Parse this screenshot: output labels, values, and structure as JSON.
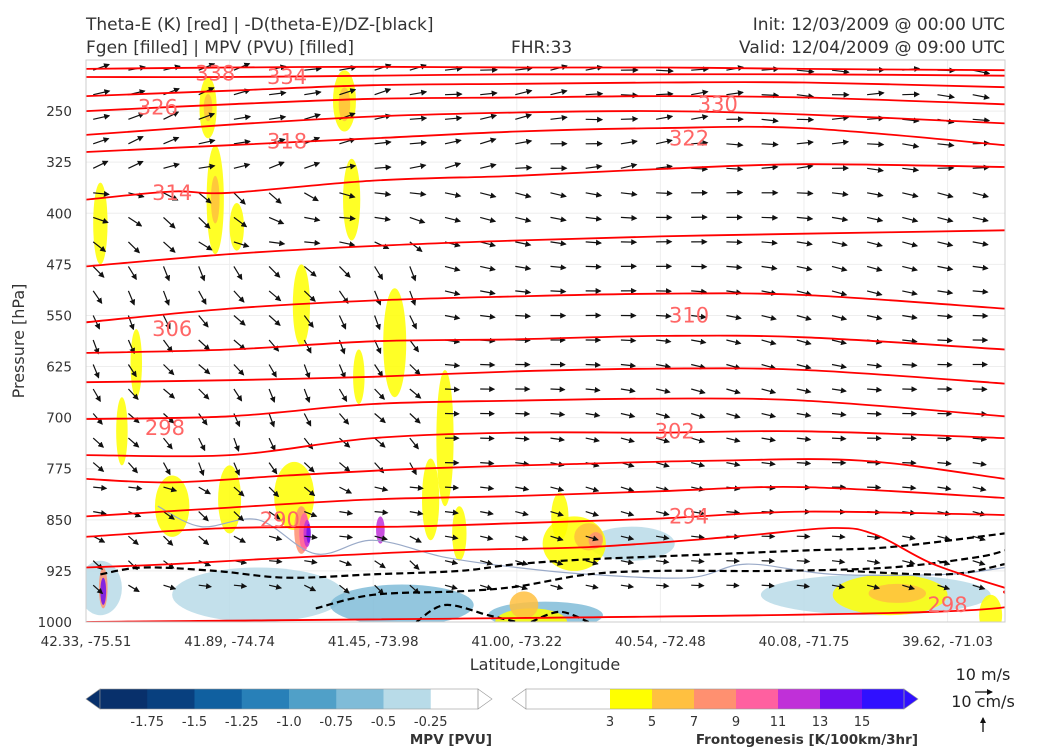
{
  "header": {
    "line1_left": "Theta-E (K) [red] | -D(theta-E)/DZ-[black]",
    "line2_left": "Fgen [filled] | MPV (PVU) [filled]",
    "line2_center": "FHR:33",
    "line1_right": "Init: 12/03/2009 @ 00:00 UTC",
    "line2_right": "Valid: 12/04/2009 @ 09:00 UTC"
  },
  "chart_data": {
    "type": "cross-section",
    "ylabel": "Pressure [hPa]",
    "xlabel": "Latitude,Longitude",
    "y_axis": {
      "ticks": [
        250,
        325,
        400,
        475,
        550,
        625,
        700,
        775,
        850,
        925,
        1000
      ],
      "range": [
        1000,
        175
      ],
      "inverted": true
    },
    "x_axis": {
      "ticks": [
        "42.33, -75.51",
        "41.89, -74.74",
        "41.45, -73.98",
        "41.00, -73.22",
        "40.54, -72.48",
        "40.08, -71.75",
        "39.62, -71.03"
      ],
      "range": [
        0,
        6.4
      ]
    },
    "grid": true,
    "theta_e_contours": {
      "color": "#ff0000",
      "levels": [
        {
          "level": 294,
          "label": "294",
          "pts": [
            [
              0,
              920
            ],
            [
              0.6,
              915
            ],
            [
              1.2,
              908
            ],
            [
              2.5,
              895
            ],
            [
              3.5,
              890
            ],
            [
              4.5,
              875
            ],
            [
              5.2,
              862
            ],
            [
              5.5,
              872
            ],
            [
              5.9,
              915
            ],
            [
              6.4,
              950
            ]
          ]
        },
        {
          "level": 298,
          "label": "298",
          "pts": [
            [
              0,
              1000
            ],
            [
              5.9,
              985
            ],
            [
              6.4,
              955
            ]
          ]
        },
        {
          "level": 290,
          "label": "290",
          "pts": [
            [
              0,
              875
            ],
            [
              1,
              862
            ],
            [
              2.2,
              860
            ],
            [
              3,
              855
            ],
            [
              4,
              848
            ],
            [
              5,
              838
            ],
            [
              6.4,
              843
            ]
          ]
        },
        {
          "level": 294,
          "label": "294",
          "pts": [
            [
              0,
              845
            ],
            [
              1,
              832
            ],
            [
              2,
              820
            ],
            [
              3,
              815
            ],
            [
              4,
              808
            ],
            [
              5,
              802
            ],
            [
              6.4,
              818
            ]
          ]
        },
        {
          "level": 298,
          "label": "298",
          "pts": [
            [
              0,
              790
            ],
            [
              0.6,
              795
            ],
            [
              1.4,
              785
            ],
            [
              2.3,
              775
            ],
            [
              3.4,
              768
            ],
            [
              4.4,
              763
            ],
            [
              5.4,
              763
            ],
            [
              6.4,
              790
            ]
          ]
        },
        {
          "level": 302,
          "label": "302",
          "pts": [
            [
              0,
              755
            ],
            [
              1,
              755
            ],
            [
              2,
              730
            ],
            [
              3,
              722
            ],
            [
              4,
              722
            ],
            [
              5,
              720
            ],
            [
              6.4,
              730
            ]
          ]
        },
        {
          "level": 302,
          "label": "302",
          "pts": [
            [
              0,
              702
            ],
            [
              1,
              698
            ],
            [
              2,
              680
            ],
            [
              3,
              675
            ],
            [
              4,
              672
            ],
            [
              5,
              675
            ],
            [
              6.4,
              698
            ]
          ]
        },
        {
          "level": 306,
          "label": "306",
          "pts": [
            [
              0,
              648
            ],
            [
              1,
              645
            ],
            [
              2,
              640
            ],
            [
              3,
              632
            ],
            [
              4,
              628
            ],
            [
              5,
              630
            ],
            [
              6.4,
              650
            ]
          ]
        },
        {
          "level": 306,
          "label": "306",
          "pts": [
            [
              0,
              605
            ],
            [
              1,
              600
            ],
            [
              2,
              588
            ],
            [
              3,
              585
            ],
            [
              4,
              580
            ],
            [
              5,
              582
            ],
            [
              6.4,
              600
            ]
          ]
        },
        {
          "level": 310,
          "label": "310",
          "pts": [
            [
              0,
              560
            ],
            [
              1,
              540
            ],
            [
              2,
              528
            ],
            [
              3,
              522
            ],
            [
              4,
              518
            ],
            [
              5,
              520
            ],
            [
              6.4,
              540
            ]
          ]
        },
        {
          "level": 310,
          "label": "310",
          "pts": [
            [
              0,
              478
            ],
            [
              1,
              460
            ],
            [
              2,
              448
            ],
            [
              3,
              440
            ],
            [
              4,
              434
            ],
            [
              5,
              430
            ],
            [
              6.4,
              425
            ]
          ]
        },
        {
          "level": 314,
          "label": "314",
          "pts": [
            [
              0,
              380
            ],
            [
              0.6,
              368
            ],
            [
              1,
              370
            ],
            [
              2,
              352
            ],
            [
              3,
              345
            ],
            [
              4,
              335
            ],
            [
              5,
              328
            ],
            [
              6.4,
              332
            ]
          ]
        },
        {
          "level": 318,
          "label": "318",
          "pts": [
            [
              0,
              310
            ],
            [
              1,
              300
            ],
            [
              2,
              290
            ],
            [
              3,
              280
            ],
            [
              4,
              275
            ],
            [
              5,
              275
            ],
            [
              6.4,
              300
            ]
          ]
        },
        {
          "level": 322,
          "label": "322",
          "pts": [
            [
              0,
              285
            ],
            [
              1,
              270
            ],
            [
              2,
              258
            ],
            [
              3,
              252
            ],
            [
              4,
              250
            ],
            [
              5,
              255
            ],
            [
              6.4,
              268
            ]
          ]
        },
        {
          "level": 326,
          "label": "326",
          "pts": [
            [
              0,
              250
            ],
            [
              1,
              240
            ],
            [
              2,
              232
            ],
            [
              3,
              230
            ],
            [
              4,
              228
            ],
            [
              5,
              230
            ],
            [
              6.4,
              240
            ]
          ]
        },
        {
          "level": 330,
          "label": "330",
          "pts": [
            [
              0,
              228
            ],
            [
              1,
              220
            ],
            [
              2,
              212
            ],
            [
              3,
              210
            ],
            [
              4,
              208
            ],
            [
              5,
              208
            ],
            [
              6.4,
              215
            ]
          ]
        },
        {
          "level": 334,
          "label": "334",
          "pts": [
            [
              0,
              200
            ],
            [
              1,
              200
            ],
            [
              2,
              198
            ],
            [
              3,
              196
            ],
            [
              4,
              196
            ],
            [
              5,
              196
            ],
            [
              6.4,
              198
            ]
          ]
        },
        {
          "level": 338,
          "label": "338",
          "pts": [
            [
              0,
              188
            ],
            [
              1,
              186
            ],
            [
              2,
              185
            ],
            [
              3,
              186
            ],
            [
              4,
              186
            ],
            [
              5,
              188
            ],
            [
              6.4,
              190
            ]
          ]
        }
      ],
      "labels": [
        {
          "text": "338",
          "x": 0.9,
          "p": 195
        },
        {
          "text": "334",
          "x": 1.4,
          "p": 200
        },
        {
          "text": "326",
          "x": 0.5,
          "p": 245
        },
        {
          "text": "318",
          "x": 1.4,
          "p": 295
        },
        {
          "text": "314",
          "x": 0.6,
          "p": 370
        },
        {
          "text": "306",
          "x": 0.6,
          "p": 570
        },
        {
          "text": "298",
          "x": 0.55,
          "p": 715
        },
        {
          "text": "290",
          "x": 1.35,
          "p": 850
        },
        {
          "text": "330",
          "x": 4.4,
          "p": 240
        },
        {
          "text": "322",
          "x": 4.2,
          "p": 290
        },
        {
          "text": "310",
          "x": 4.2,
          "p": 550
        },
        {
          "text": "302",
          "x": 4.1,
          "p": 720
        },
        {
          "text": "294",
          "x": 4.2,
          "p": 845
        },
        {
          "text": "298",
          "x": 6.0,
          "p": 975
        }
      ]
    },
    "stability_contours": {
      "color": "#000000",
      "style": "dashed",
      "paths": [
        [
          [
            0.1,
            930
          ],
          [
            0.4,
            920
          ],
          [
            0.9,
            925
          ],
          [
            1.4,
            935
          ],
          [
            2,
            930
          ],
          [
            2.6,
            925
          ],
          [
            3.0,
            915
          ],
          [
            3.5,
            908
          ],
          [
            4.2,
            902
          ],
          [
            5.0,
            895
          ],
          [
            5.6,
            890
          ],
          [
            6.4,
            870
          ]
        ],
        [
          [
            1.6,
            980
          ],
          [
            2.0,
            960
          ],
          [
            2.6,
            955
          ],
          [
            3.0,
            948
          ],
          [
            3.5,
            930
          ],
          [
            4.0,
            925
          ],
          [
            4.8,
            925
          ],
          [
            5.6,
            920
          ],
          [
            6.2,
            905
          ],
          [
            6.4,
            895
          ]
        ],
        [
          [
            2.3,
            1000
          ],
          [
            2.5,
            975
          ],
          [
            2.8,
            990
          ],
          [
            3.0,
            1000
          ]
        ],
        [
          [
            3.1,
            1000
          ],
          [
            3.3,
            985
          ],
          [
            3.5,
            1000
          ]
        ],
        [
          [
            5.3,
            925
          ],
          [
            6.0,
            930
          ],
          [
            6.4,
            915
          ]
        ]
      ]
    },
    "fgen_filled": {
      "colorbar_label": "Frontogenesis [K/100km/3hr]",
      "levels": [
        3,
        5,
        7,
        9,
        11,
        13,
        15
      ],
      "colors": [
        "#ffff00",
        "#ffc040",
        "#ff9070",
        "#ff60a0",
        "#c030d8",
        "#7010f0",
        "#3010ff"
      ]
    },
    "mpv_filled": {
      "colorbar_label": "MPV [PVU]",
      "levels": [
        -1.75,
        -1.5,
        -1.25,
        -1.0,
        -0.75,
        -0.5,
        -0.25
      ],
      "colors": [
        "#08306b",
        "#08407f",
        "#1060a0",
        "#2880b8",
        "#50a0c8",
        "#80bcd8",
        "#b8dbe8",
        "#ffffff"
      ]
    },
    "colorbars": {
      "mpv": {
        "label": "MPV [PVU]",
        "ticks": [
          "-1.75",
          "-1.5",
          "-1.25",
          "-1.0",
          "-0.75",
          "-0.5",
          "-0.25"
        ]
      },
      "fgen": {
        "label": "Frontogenesis [K/100km/3hr]",
        "ticks": [
          "3",
          "5",
          "7",
          "9",
          "11",
          "13",
          "15"
        ]
      }
    },
    "wind_key": {
      "horizontal": "10 m/s",
      "vertical": "10 cm/s"
    }
  },
  "colors": {
    "theta_e": "#ff0000",
    "labels": "#ff6666",
    "stability": "#000000"
  }
}
